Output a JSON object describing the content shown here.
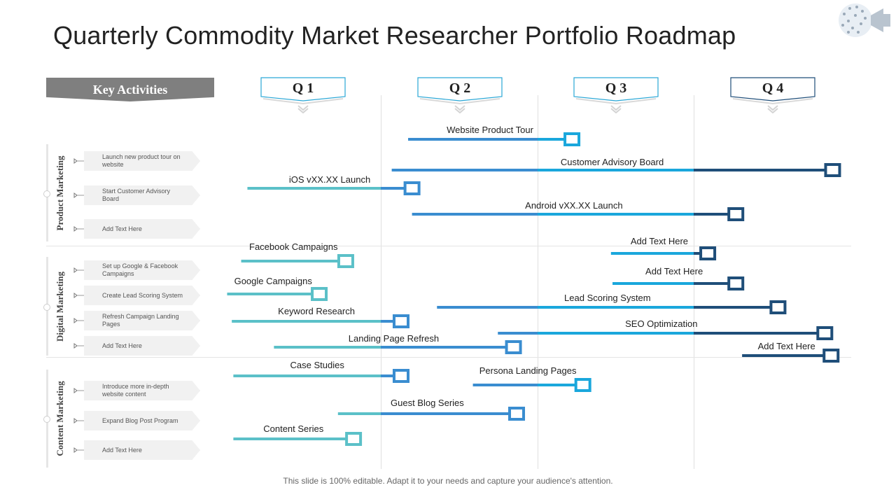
{
  "slide": {
    "title": "Quarterly Commodity Market Researcher Portfolio Roadmap",
    "key_activities_label": "Key Activities",
    "footer": "This slide is 100% editable. Adapt it to your needs and capture your audience's attention."
  },
  "quarters": [
    "Q 1",
    "Q 2",
    "Q 3",
    "Q 4"
  ],
  "categories": [
    {
      "name": "Product Marketing",
      "activities": [
        "Launch new product tour on website",
        "Start Customer Advisory Board",
        "Add Text Here"
      ]
    },
    {
      "name": "Digital Marketing",
      "activities": [
        "Set up Google & Facebook Campaigns",
        "Create Lead Scoring System",
        "Refresh Campaign Landing Pages",
        "Add Text Here"
      ]
    },
    {
      "name": "Content Marketing",
      "activities": [
        "Introduce more in-depth website content",
        "Expand Blog Post Program",
        "Add Text Here"
      ]
    }
  ],
  "timeline_bars": [
    {
      "label": "Website Product Tour",
      "start": 1.175,
      "end": 2.22
    },
    {
      "label": "Customer Advisory Board",
      "start": 1.07,
      "end": 3.89
    },
    {
      "label": "iOS vXX.XX  Launch",
      "start": 0.15,
      "end": 1.2
    },
    {
      "label": "Android vXX.XX  Launch",
      "start": 1.2,
      "end": 3.27
    },
    {
      "label": "Facebook Campaigns",
      "start": 0.11,
      "end": 0.78
    },
    {
      "label": "Add Text Here",
      "start": 2.47,
      "end": 3.09
    },
    {
      "label": "Add Text Here",
      "start": 2.48,
      "end": 3.27
    },
    {
      "label": "Google Campaigns",
      "start": 0.02,
      "end": 0.61
    },
    {
      "label": "Lead Scoring System",
      "start": 1.36,
      "end": 3.54
    },
    {
      "label": "Keyword Research",
      "start": 0.05,
      "end": 1.13
    },
    {
      "label": "SEO Optimization",
      "start": 1.75,
      "end": 3.84
    },
    {
      "label": "Landing Page Refresh",
      "start": 0.32,
      "end": 1.85
    },
    {
      "label": "Add Text Here",
      "start": 3.31,
      "end": 3.88
    },
    {
      "label": "Case Studies",
      "start": 0.06,
      "end": 1.13
    },
    {
      "label": "Persona Landing Pages",
      "start": 1.59,
      "end": 2.29
    },
    {
      "label": "Guest Blog Series",
      "start": 0.73,
      "end": 1.87
    },
    {
      "label": "Content Series",
      "start": 0.06,
      "end": 0.83
    }
  ],
  "colors": {
    "teal": "#5bc0c8",
    "mid_blue": "#3a8dd0",
    "bright_blue": "#1aa7dc",
    "dark_navy": "#1f4e79",
    "gray_banner": "#7f7f7f"
  }
}
